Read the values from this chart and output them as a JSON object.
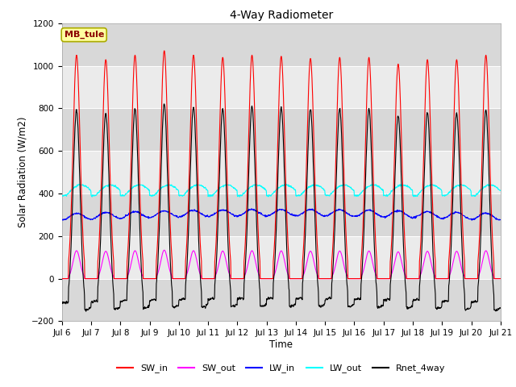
{
  "title": "4-Way Radiometer",
  "xlabel": "Time",
  "ylabel": "Solar Radiation (W/m2)",
  "site_label": "MB_tule",
  "xlim_days": [
    6,
    21
  ],
  "ylim": [
    -200,
    1200
  ],
  "yticks": [
    -200,
    0,
    200,
    400,
    600,
    800,
    1000,
    1200
  ],
  "xtick_labels": [
    "Jul 6",
    "Jul 7",
    "Jul 8",
    "Jul 9",
    "Jul 10",
    "Jul 11",
    "Jul 12",
    "Jul 13",
    "Jul 14",
    "Jul 15",
    "Jul 16",
    "Jul 17",
    "Jul 18",
    "Jul 19",
    "Jul 20",
    "Jul 21"
  ],
  "colors": {
    "SW_in": "#FF0000",
    "SW_out": "#FF00FF",
    "LW_in": "#0000FF",
    "LW_out": "#00FFFF",
    "Rnet_4way": "#000000"
  },
  "legend_labels": [
    "SW_in",
    "SW_out",
    "LW_in",
    "LW_out",
    "Rnet_4way"
  ],
  "fig_bg_color": "#FFFFFF",
  "plot_bg_color": "#E8E8E8",
  "grid_color": "#FFFFFF",
  "SW_in_peak": 1050,
  "LW_in_base": 290,
  "LW_out_base": 390,
  "Rnet_peak": 810,
  "Rnet_night": -110
}
